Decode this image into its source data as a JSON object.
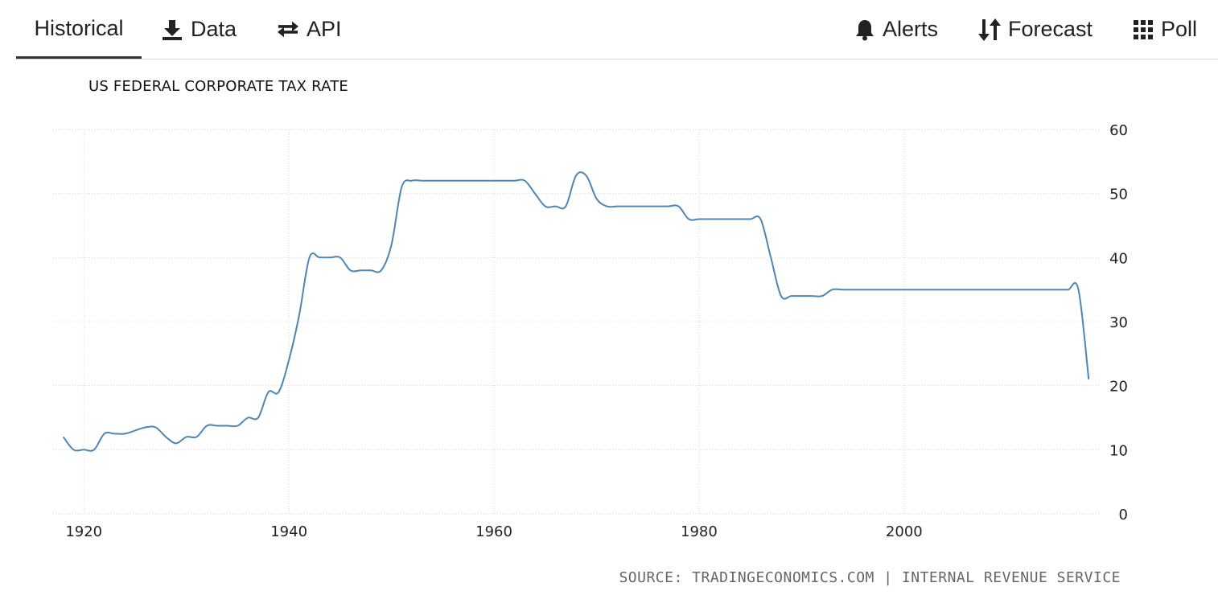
{
  "tabs": [
    {
      "label": "Historical",
      "icon": "",
      "active": true
    },
    {
      "label": "Data",
      "icon": "download-icon"
    },
    {
      "label": "API",
      "icon": "swap-arrows-icon"
    },
    {
      "label": "Alerts",
      "icon": "bell-icon"
    },
    {
      "label": "Forecast",
      "icon": "sort-arrows-icon"
    },
    {
      "label": "Poll",
      "icon": "grid-icon"
    }
  ],
  "source": {
    "prefix": "SOURCE: ",
    "link1": "TRADINGECONOMICS.COM",
    "separator": " | ",
    "link2": "INTERNAL REVENUE SERVICE"
  },
  "colors": {
    "line": "#4d86b5",
    "grid": "#d9d9d9",
    "text": "#222222",
    "source": "#666666"
  },
  "chart_data": {
    "type": "line",
    "title": "US FEDERAL CORPORATE TAX RATE",
    "xlabel": "",
    "ylabel": "",
    "xlim": [
      1917,
      2019
    ],
    "ylim": [
      0,
      60
    ],
    "x_ticks": [
      1920,
      1940,
      1960,
      1980,
      2000
    ],
    "y_ticks": [
      0,
      10,
      20,
      30,
      40,
      50,
      60
    ],
    "y_axis_position": "right",
    "grid": true,
    "series": [
      {
        "x": [
          1918,
          1919,
          1920,
          1921,
          1922,
          1923,
          1924,
          1925,
          1926,
          1927,
          1928,
          1929,
          1930,
          1931,
          1932,
          1933,
          1934,
          1935,
          1936,
          1937,
          1938,
          1939,
          1940,
          1941,
          1942,
          1943,
          1944,
          1945,
          1946,
          1947,
          1948,
          1949,
          1950,
          1951,
          1952,
          1953,
          1954,
          1955,
          1956,
          1957,
          1958,
          1959,
          1960,
          1961,
          1962,
          1963,
          1964,
          1965,
          1966,
          1967,
          1968,
          1969,
          1970,
          1971,
          1972,
          1973,
          1974,
          1975,
          1976,
          1977,
          1978,
          1979,
          1980,
          1981,
          1982,
          1983,
          1984,
          1985,
          1986,
          1987,
          1988,
          1989,
          1990,
          1991,
          1992,
          1993,
          1994,
          1995,
          1996,
          1997,
          1998,
          1999,
          2000,
          2001,
          2002,
          2003,
          2004,
          2005,
          2006,
          2007,
          2008,
          2009,
          2010,
          2011,
          2012,
          2013,
          2014,
          2015,
          2016,
          2017,
          2018
        ],
        "values": [
          12,
          10,
          10,
          10,
          12.5,
          12.5,
          12.5,
          13,
          13.5,
          13.5,
          12,
          11,
          12,
          12,
          13.75,
          13.75,
          13.75,
          13.75,
          15,
          15,
          19,
          19,
          24,
          31,
          40,
          40,
          40,
          40,
          38,
          38,
          38,
          38,
          42,
          51,
          52,
          52,
          52,
          52,
          52,
          52,
          52,
          52,
          52,
          52,
          52,
          52,
          50,
          48,
          48,
          48,
          52.8,
          52.8,
          49.2,
          48,
          48,
          48,
          48,
          48,
          48,
          48,
          48,
          46,
          46,
          46,
          46,
          46,
          46,
          46,
          46,
          40,
          34,
          34,
          34,
          34,
          34,
          35,
          35,
          35,
          35,
          35,
          35,
          35,
          35,
          35,
          35,
          35,
          35,
          35,
          35,
          35,
          35,
          35,
          35,
          35,
          35,
          35,
          35,
          35,
          35,
          35,
          21
        ]
      }
    ]
  }
}
